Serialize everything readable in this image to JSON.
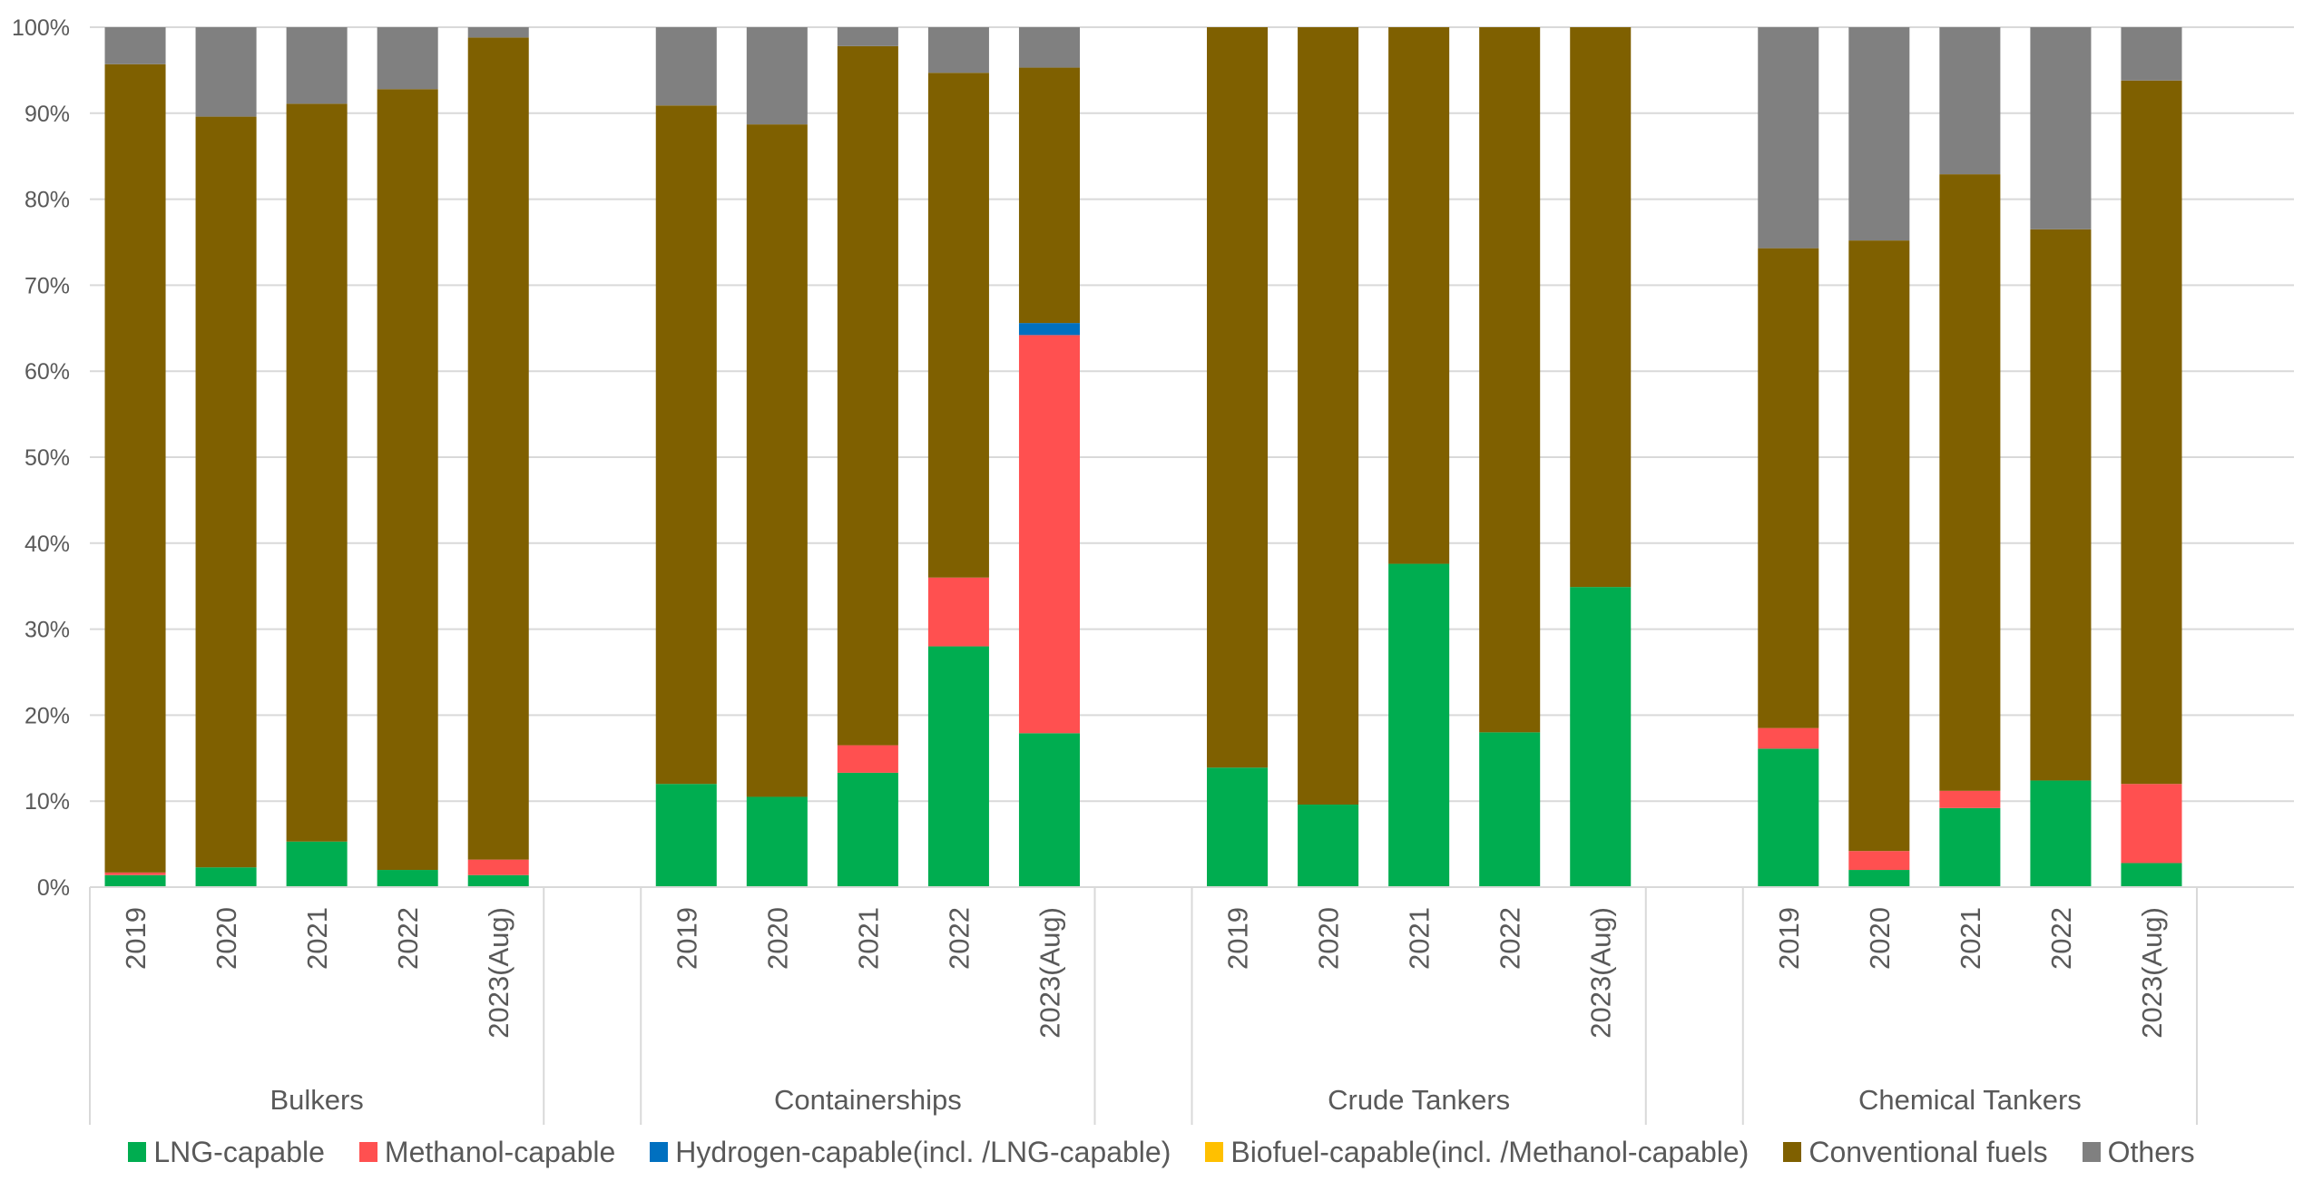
{
  "chart_data": {
    "type": "bar",
    "stacked": true,
    "percent_stacked": true,
    "title": "",
    "xlabel": "",
    "ylabel": "",
    "ylim": [
      0,
      100
    ],
    "y_ticks": [
      "0%",
      "10%",
      "20%",
      "30%",
      "40%",
      "50%",
      "60%",
      "70%",
      "80%",
      "90%",
      "100%"
    ],
    "grid": true,
    "legend_position": "bottom",
    "groups": [
      {
        "name": "Bulkers",
        "categories": [
          "2019",
          "2020",
          "2021",
          "2022",
          "2023(Aug)"
        ]
      },
      {
        "name": "Containerships",
        "categories": [
          "2019",
          "2020",
          "2021",
          "2022",
          "2023(Aug)"
        ]
      },
      {
        "name": "Crude Tankers",
        "categories": [
          "2019",
          "2020",
          "2021",
          "2022",
          "2023(Aug)"
        ]
      },
      {
        "name": "Chemical Tankers",
        "categories": [
          "2019",
          "2020",
          "2021",
          "2022",
          "2023(Aug)"
        ]
      }
    ],
    "series": [
      {
        "name": "LNG-capable",
        "color": "#00AD50",
        "values": [
          1.4,
          2.3,
          5.3,
          2.0,
          1.4,
          12.0,
          10.5,
          13.3,
          28.0,
          17.9,
          13.9,
          9.6,
          37.6,
          18.0,
          34.9,
          16.1,
          2.0,
          9.2,
          12.4,
          2.8
        ]
      },
      {
        "name": "Methanol-capable",
        "color": "#FF5050",
        "values": [
          0.3,
          0.0,
          0.0,
          0.0,
          1.8,
          0.0,
          0.0,
          3.2,
          8.0,
          46.3,
          0.0,
          0.0,
          0.0,
          0.0,
          0.0,
          2.4,
          2.2,
          2.0,
          0.0,
          9.2
        ]
      },
      {
        "name": "Hydrogen-capable(incl. /LNG-capable)",
        "color": "#0070C0",
        "values": [
          0,
          0,
          0,
          0,
          0,
          0,
          0,
          0,
          0,
          1.4,
          0,
          0,
          0,
          0,
          0,
          0,
          0,
          0,
          0,
          0
        ]
      },
      {
        "name": "Biofuel-capable(incl. /Methanol-capable)",
        "color": "#FFC000",
        "values": [
          0,
          0,
          0,
          0,
          0,
          0,
          0,
          0,
          0,
          0,
          0,
          0,
          0,
          0,
          0,
          0,
          0,
          0,
          0,
          0
        ]
      },
      {
        "name": "Conventional fuels",
        "color": "#7F6000",
        "values": [
          94.0,
          87.3,
          85.8,
          90.8,
          95.6,
          78.9,
          78.2,
          81.3,
          58.7,
          29.7,
          86.1,
          90.4,
          62.4,
          82.0,
          65.1,
          55.8,
          71.0,
          71.7,
          64.1,
          81.8
        ]
      },
      {
        "name": "Others",
        "color": "#808080",
        "values": [
          4.3,
          10.4,
          8.9,
          7.2,
          1.2,
          9.1,
          11.3,
          2.2,
          5.3,
          4.7,
          0.0,
          0.0,
          0.0,
          0.0,
          0.0,
          25.7,
          24.8,
          17.1,
          23.5,
          6.2
        ]
      }
    ]
  }
}
